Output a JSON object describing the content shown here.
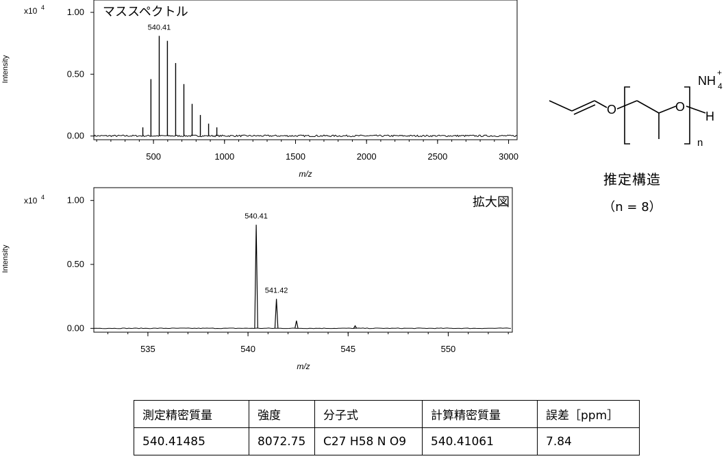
{
  "chart_data": [
    {
      "type": "line",
      "title": "マススペクトル",
      "xlabel": "m/z",
      "ylabel": "Intensity",
      "y_multiplier": "x10",
      "y_multiplier_exp": "4",
      "xlim": [
        80,
        3060
      ],
      "ylim": [
        -0.03,
        1.1
      ],
      "xticks": [
        500,
        1000,
        1500,
        2000,
        2500,
        3000
      ],
      "yticks": [
        0.0,
        0.5,
        1.0
      ],
      "ytick_labels": [
        "0.00",
        "0.50",
        "1.00"
      ],
      "peaks": [
        {
          "x": 425,
          "y": 0.07
        },
        {
          "x": 482,
          "y": 0.46
        },
        {
          "x": 540.41,
          "y": 0.81
        },
        {
          "x": 598,
          "y": 0.77
        },
        {
          "x": 656,
          "y": 0.59
        },
        {
          "x": 714,
          "y": 0.42
        },
        {
          "x": 772,
          "y": 0.26
        },
        {
          "x": 830,
          "y": 0.17
        },
        {
          "x": 888,
          "y": 0.1
        },
        {
          "x": 946,
          "y": 0.07
        }
      ],
      "annotations": [
        {
          "x": 540.41,
          "y": 0.81,
          "text": "540.41"
        }
      ]
    },
    {
      "type": "line",
      "title": "拡大図",
      "xlabel": "m/z",
      "ylabel": "Intensity",
      "y_multiplier": "x10",
      "y_multiplier_exp": "4",
      "xlim": [
        532.3,
        553.2
      ],
      "ylim": [
        -0.03,
        1.1
      ],
      "xticks": [
        535,
        540,
        545,
        550
      ],
      "yticks": [
        0.0,
        0.5,
        1.0
      ],
      "ytick_labels": [
        "0.00",
        "0.50",
        "1.00"
      ],
      "peaks": [
        {
          "x": 540.41,
          "y": 0.81
        },
        {
          "x": 541.42,
          "y": 0.23
        },
        {
          "x": 542.42,
          "y": 0.06
        },
        {
          "x": 545.35,
          "y": 0.02
        }
      ],
      "annotations": [
        {
          "x": 540.41,
          "y": 0.81,
          "text": "540.41"
        },
        {
          "x": 541.42,
          "y": 0.23,
          "text": "541.42"
        }
      ]
    }
  ],
  "structure": {
    "atom_o1": "O",
    "atom_o2": "O",
    "atom_h": "H",
    "ion_nh": "NH",
    "ion_sub": "4",
    "ion_sup": "+",
    "repeat": "n",
    "title": "推定構造",
    "n_label": "（n = 8）"
  },
  "table": {
    "headers": [
      "測定精密質量",
      "強度",
      "分子式",
      "計算精密質量",
      "誤差［ppm］"
    ],
    "rows": [
      [
        "540.41485",
        "8072.75",
        "C27 H58 N O9",
        "540.41061",
        "7.84"
      ]
    ]
  }
}
